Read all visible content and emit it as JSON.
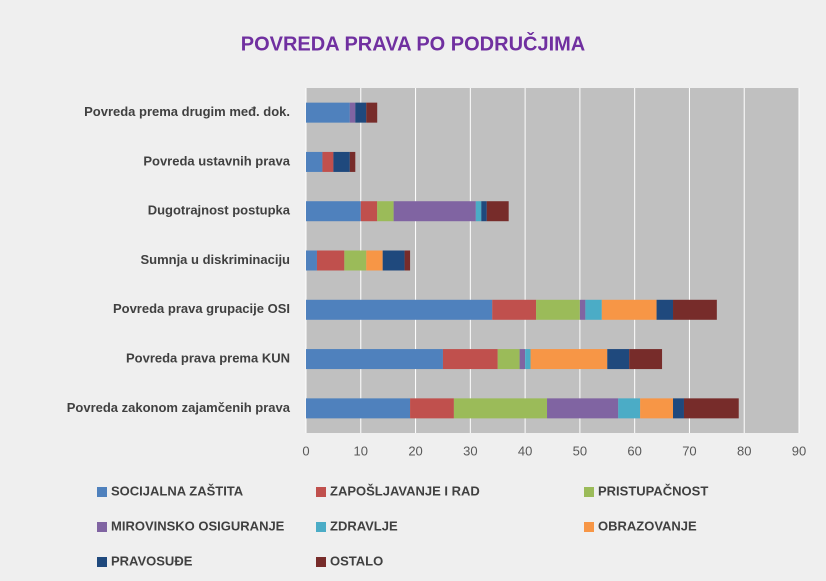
{
  "chart_data": {
    "type": "stacked_barh",
    "title": "POVREDA PRAVA PO PODRUČJIMA",
    "categories": [
      "Povreda prema drugim međ. dok.",
      "Povreda ustavnih prava",
      "Dugotrajnost postupka",
      "Sumnja u diskriminaciju",
      "Povreda prava grupacije OSI",
      "Povreda prava prema KUN",
      "Povreda zakonom zajamčenih prava"
    ],
    "series": [
      {
        "name": "SOCIJALNA ZAŠTITA",
        "color": "#4f81bd",
        "values": [
          8,
          3,
          10,
          2,
          34,
          25,
          19
        ]
      },
      {
        "name": "ZAPOŠLJAVANJE I RAD",
        "color": "#c0504d",
        "values": [
          0,
          2,
          3,
          5,
          8,
          10,
          8
        ]
      },
      {
        "name": "PRISTUPAČNOST",
        "color": "#9bbb59",
        "values": [
          0,
          0,
          3,
          4,
          8,
          4,
          17
        ]
      },
      {
        "name": "MIROVINSKO OSIGURANJE",
        "color": "#8064a2",
        "values": [
          1,
          0,
          15,
          0,
          1,
          1,
          13
        ]
      },
      {
        "name": "ZDRAVLJE",
        "color": "#4bacc6",
        "values": [
          0,
          0,
          1,
          0,
          3,
          1,
          4
        ]
      },
      {
        "name": "OBRAZOVANJE",
        "color": "#f79646",
        "values": [
          0,
          0,
          0,
          3,
          10,
          14,
          6
        ]
      },
      {
        "name": "PRAVOSUĐE",
        "color": "#1f497d",
        "values": [
          2,
          3,
          1,
          4,
          3,
          4,
          2
        ]
      },
      {
        "name": "OSTALO",
        "color": "#772c2a",
        "values": [
          2,
          1,
          4,
          1,
          8,
          6,
          10
        ]
      }
    ],
    "xlim": [
      0,
      90
    ],
    "xticks": [
      0,
      10,
      20,
      30,
      40,
      50,
      60,
      70,
      80,
      90
    ],
    "grid": true,
    "legend": "bottom"
  }
}
